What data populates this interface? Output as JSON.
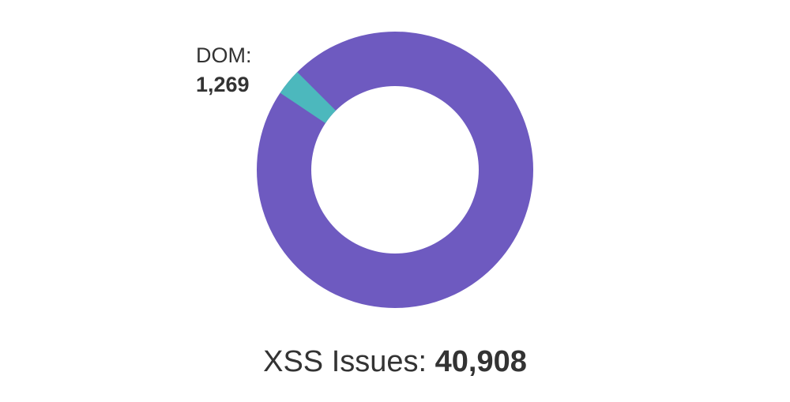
{
  "chart_data": {
    "type": "donut",
    "categories": [
      "DOM:"
    ],
    "values": [
      1269
    ],
    "value_labels": [
      "1,269"
    ],
    "colors": [
      "#4cb8bd"
    ],
    "total_name": "XSS Issues:",
    "total_value": 40908,
    "total_value_label": "40,908",
    "total_color": "#6e5ac0"
  }
}
